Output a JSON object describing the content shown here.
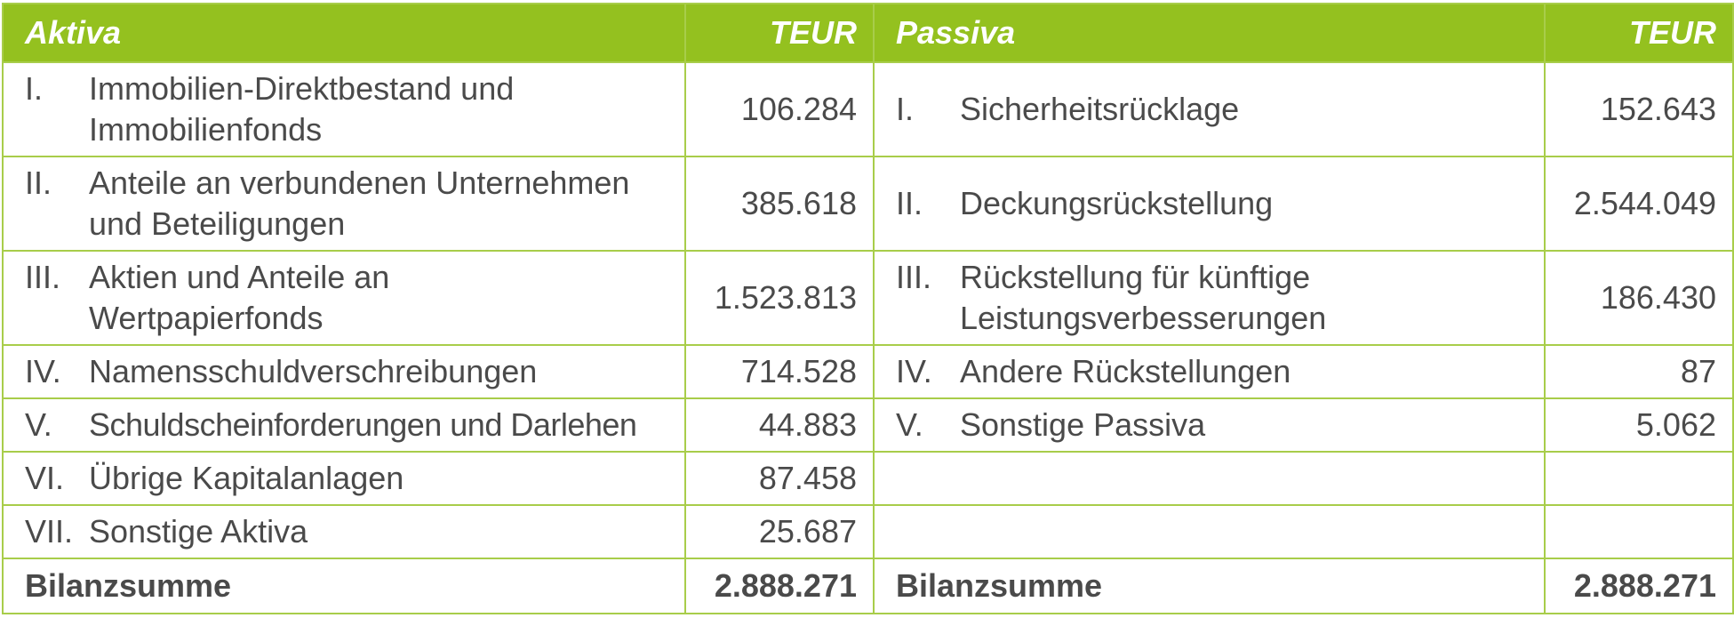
{
  "header": {
    "left_title": "Aktiva",
    "left_unit": "TEUR",
    "right_title": "Passiva",
    "right_unit": "TEUR"
  },
  "rows": [
    {
      "a_num": "I.",
      "a_label": "Immobilien-Direktbestand und Immobilienfonds",
      "a_value": "106.284",
      "p_num": "I.",
      "p_label": "Sicherheitsrücklage",
      "p_value": "152.643"
    },
    {
      "a_num": "II.",
      "a_label": "Anteile an verbundenen Unternehmen und Beteiligungen",
      "a_value": "385.618",
      "p_num": "II.",
      "p_label": "Deckungsrückstellung",
      "p_value": "2.544.049"
    },
    {
      "a_num": "III.",
      "a_label": "Aktien und Anteile an Wertpapierfonds",
      "a_value": "1.523.813",
      "p_num": "III.",
      "p_label": "Rückstellung für künftige Leistungsverbesserungen",
      "p_value": "186.430"
    },
    {
      "a_num": "IV.",
      "a_label": "Namensschuldverschreibungen",
      "a_value": "714.528",
      "p_num": "IV.",
      "p_label": "Andere Rückstellungen",
      "p_value": "87"
    },
    {
      "a_num": "V.",
      "a_label": "Schuldscheinforderungen und Darlehen",
      "a_value": "44.883",
      "p_num": "V.",
      "p_label": "Sonstige Passiva",
      "p_value": "5.062"
    },
    {
      "a_num": "VI.",
      "a_label": "Übrige Kapitalanlagen",
      "a_value": "87.458",
      "p_num": "",
      "p_label": "",
      "p_value": ""
    },
    {
      "a_num": "VII.",
      "a_label": "Sonstige Aktiva",
      "a_value": "25.687",
      "p_num": "",
      "p_label": "",
      "p_value": ""
    }
  ],
  "totals": {
    "left_label": "Bilanzsumme",
    "left_value": "2.888.271",
    "right_label": "Bilanzsumme",
    "right_value": "2.888.271"
  },
  "colors": {
    "header_bg": "#94c11f",
    "border": "#a8cd4a",
    "text": "#4a4a4a"
  }
}
